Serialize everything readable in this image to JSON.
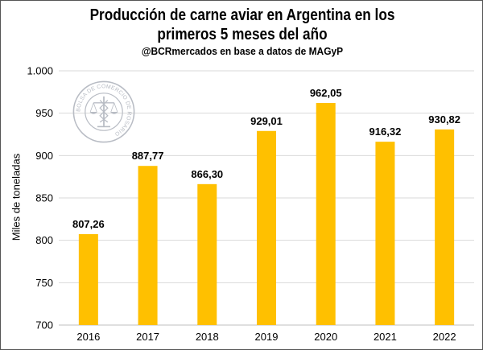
{
  "header": {
    "title": "Producción de carne aviar en Argentina en los primeros 5 meses del año",
    "subtitle": "@BCRmercados en base a datos de MAGyP"
  },
  "logo": {
    "icon": "bolsa-de-comercio-de-rosario-seal-icon",
    "text": "BOLSA DE COMERCIO DE ROSARIO"
  },
  "chart_data": {
    "type": "bar",
    "title": "Producción de carne aviar en Argentina en los primeros 5 meses del año",
    "subtitle": "@BCRmercados en base a datos de MAGyP",
    "xlabel": "",
    "ylabel": "Miles de toneladas",
    "categories": [
      "2016",
      "2017",
      "2018",
      "2019",
      "2020",
      "2021",
      "2022"
    ],
    "values": [
      807.26,
      887.77,
      866.3,
      929.01,
      962.05,
      916.32,
      930.82
    ],
    "value_labels": [
      "807,26",
      "887,77",
      "866,30",
      "929,01",
      "962,05",
      "916,32",
      "930,82"
    ],
    "ylim": [
      700,
      1000
    ],
    "yticks": [
      700,
      750,
      800,
      850,
      900,
      950,
      1000
    ],
    "ytick_labels": [
      "700",
      "750",
      "800",
      "850",
      "900",
      "950",
      "1.000"
    ],
    "bar_color": "#FFC000",
    "gridlines": true,
    "legend": "none"
  }
}
